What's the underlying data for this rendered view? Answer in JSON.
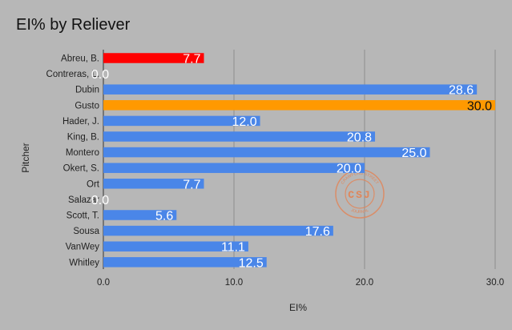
{
  "chart_data": {
    "type": "bar",
    "orientation": "horizontal",
    "title": "EI% by Reliever",
    "xlabel": "EI%",
    "ylabel": "Pitcher",
    "xlim": [
      0,
      30
    ],
    "xticks": [
      "0.0",
      "10.0",
      "20.0",
      "30.0"
    ],
    "grid": true,
    "categories": [
      "Abreu, B.",
      "Contreras, L.",
      "Dubin",
      "Gusto",
      "Hader, J.",
      "King, B.",
      "Montero",
      "Okert, S.",
      "Ort",
      "Salazar",
      "Scott, T.",
      "Sousa",
      "VanWey",
      "Whitley"
    ],
    "values": [
      7.7,
      0.0,
      28.6,
      30.0,
      12.0,
      20.8,
      25.0,
      20.0,
      7.7,
      0.0,
      5.6,
      17.6,
      11.1,
      12.5
    ],
    "labels": [
      "7.7",
      "0.0",
      "28.6",
      "30.0",
      "12.0",
      "20.8",
      "25.0",
      "20.0",
      "7.7",
      "0.0",
      "5.6",
      "17.6",
      "11.1",
      "12.5"
    ],
    "bar_colors": [
      "#ff0000",
      "#4a86e8",
      "#4a86e8",
      "#ff9900",
      "#4a86e8",
      "#4a86e8",
      "#4a86e8",
      "#4a86e8",
      "#4a86e8",
      "#4a86e8",
      "#4a86e8",
      "#4a86e8",
      "#4a86e8",
      "#4a86e8"
    ],
    "label_colors": [
      "#ffffff",
      "#ffffff",
      "#ffffff",
      "#111111",
      "#ffffff",
      "#ffffff",
      "#ffffff",
      "#ffffff",
      "#ffffff",
      "#ffffff",
      "#ffffff",
      "#ffffff",
      "#ffffff",
      "#ffffff"
    ]
  },
  "watermark": {
    "text": "CSJ",
    "ring_text": "CRAWFORD STREET JOURNAL",
    "color": "#e0865a"
  }
}
